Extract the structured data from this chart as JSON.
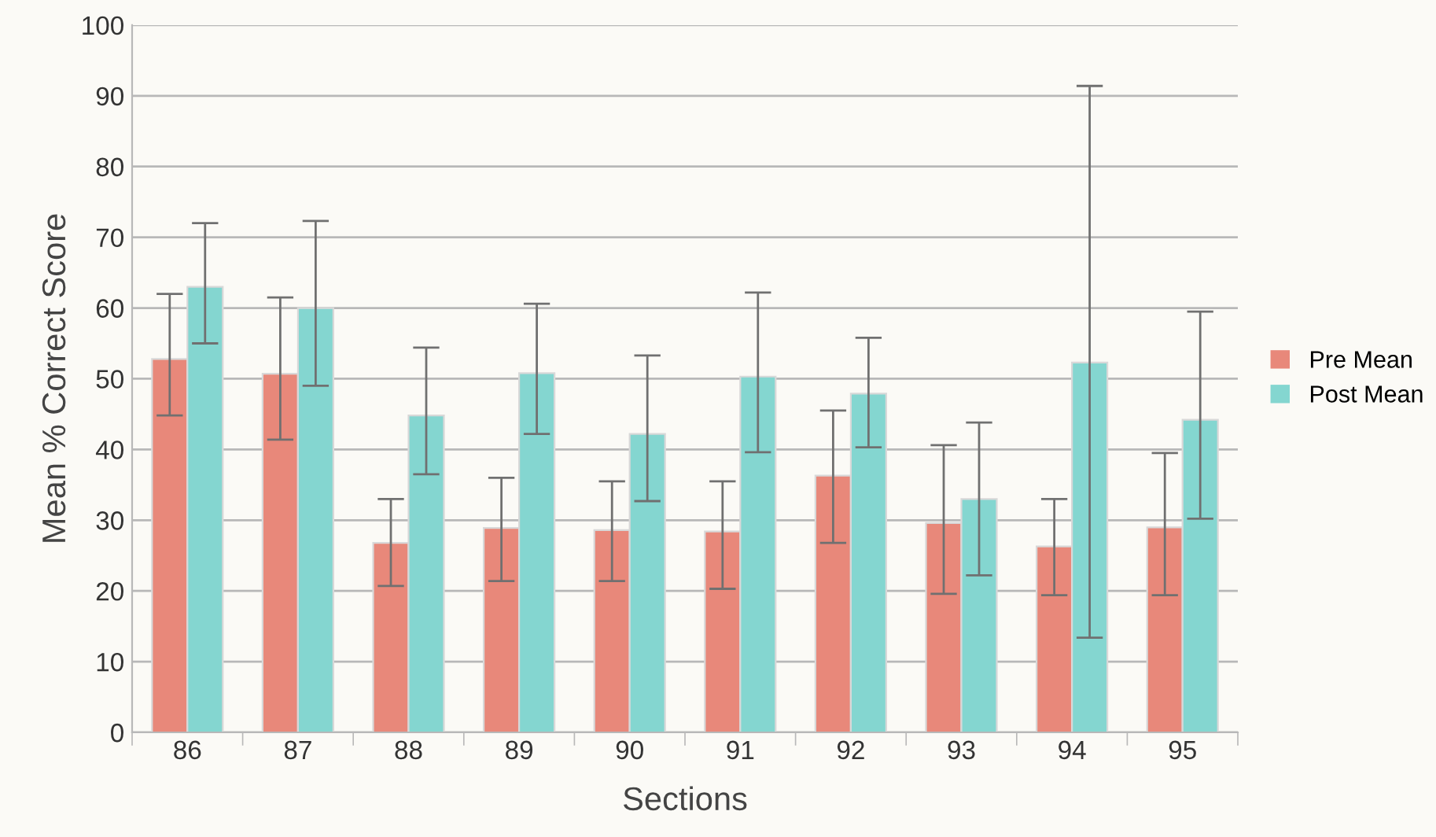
{
  "chart_data": {
    "type": "bar",
    "xlabel": "Sections",
    "ylabel": "Mean % Correct Score",
    "categories": [
      "86",
      "87",
      "88",
      "89",
      "90",
      "91",
      "92",
      "93",
      "94",
      "95"
    ],
    "series": [
      {
        "name": "Pre Mean",
        "color": "#e8887a",
        "values": [
          52.8,
          50.7,
          26.8,
          28.9,
          28.6,
          28.4,
          36.3,
          29.6,
          26.3,
          29.0
        ],
        "errors": [
          [
            44.8,
            62
          ],
          [
            41.4,
            61.5
          ],
          [
            20.7,
            33
          ],
          [
            21.4,
            36
          ],
          [
            21.4,
            35.5
          ],
          [
            20.3,
            35.5
          ],
          [
            26.8,
            45.5
          ],
          [
            19.6,
            40.6
          ],
          [
            19.4,
            33
          ],
          [
            19.4,
            39.5
          ]
        ]
      },
      {
        "name": "Post Mean",
        "color": "#84d6d0",
        "values": [
          63.0,
          60.0,
          44.8,
          50.8,
          42.2,
          50.3,
          47.9,
          33.0,
          52.3,
          44.2
        ],
        "errors": [
          [
            55,
            72
          ],
          [
            49,
            72.3
          ],
          [
            36.5,
            54.4
          ],
          [
            42.2,
            60.6
          ],
          [
            32.7,
            53.3
          ],
          [
            39.6,
            62.2
          ],
          [
            40.3,
            55.8
          ],
          [
            22.2,
            43.8
          ],
          [
            13.4,
            91.4
          ],
          [
            30.2,
            59.5
          ]
        ]
      }
    ],
    "ylim": [
      0,
      100
    ],
    "yticks": [
      0,
      10,
      20,
      30,
      40,
      50,
      60,
      70,
      80,
      90,
      100
    ],
    "grid": "y",
    "legend": "right"
  }
}
